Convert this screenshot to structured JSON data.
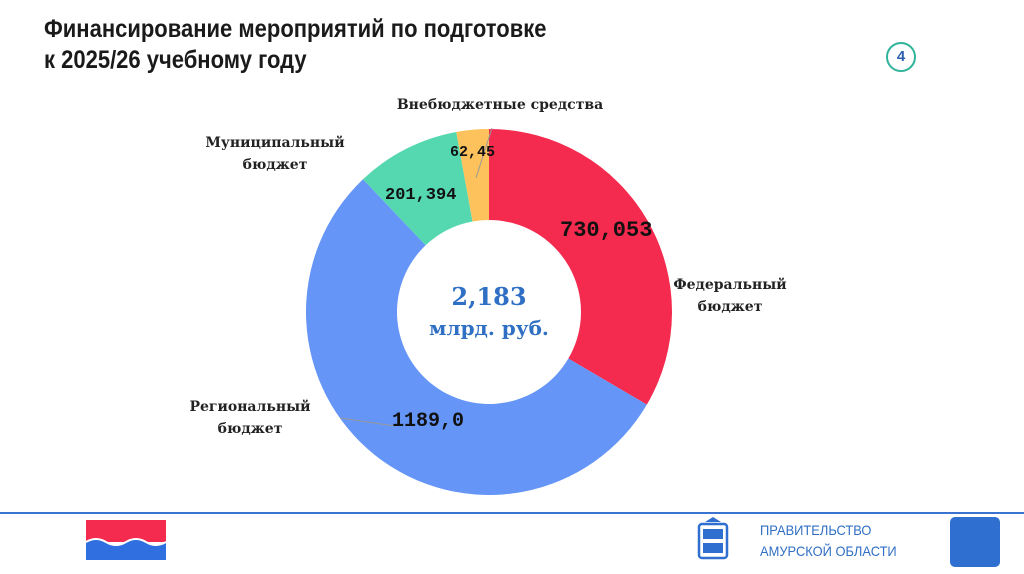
{
  "slide": {
    "title_line1": "Финансирование мероприятий по подготовке",
    "title_line2": "к 2025/26 учебному году",
    "page_number": "4"
  },
  "chart_data": {
    "type": "pie",
    "donut": true,
    "center_value": "2,183",
    "center_unit": "млрд. руб.",
    "slices": [
      {
        "name_line1": "Федеральный",
        "name_line2": "бюджет",
        "value": 730.053,
        "label": "730,053",
        "color": "#F42A4E"
      },
      {
        "name_line1": "Региональный",
        "name_line2": "бюджет",
        "value": 1189.0,
        "label": "1189,0",
        "color": "#6495F7"
      },
      {
        "name_line1": "Муниципальный",
        "name_line2": "бюджет",
        "value": 201.394,
        "label": "201,394",
        "color": "#55D8B0"
      },
      {
        "name_line1": "Внебюджетные средства",
        "name_line2": "",
        "value": 62.45,
        "label": "62,45",
        "color": "#FDC25C"
      }
    ]
  },
  "footer": {
    "gov_line1": "ПРАВИТЕЛЬСТВО",
    "gov_line2": "АМУРСКОЙ ОБЛАСТИ",
    "accent": "#3A72D0"
  }
}
